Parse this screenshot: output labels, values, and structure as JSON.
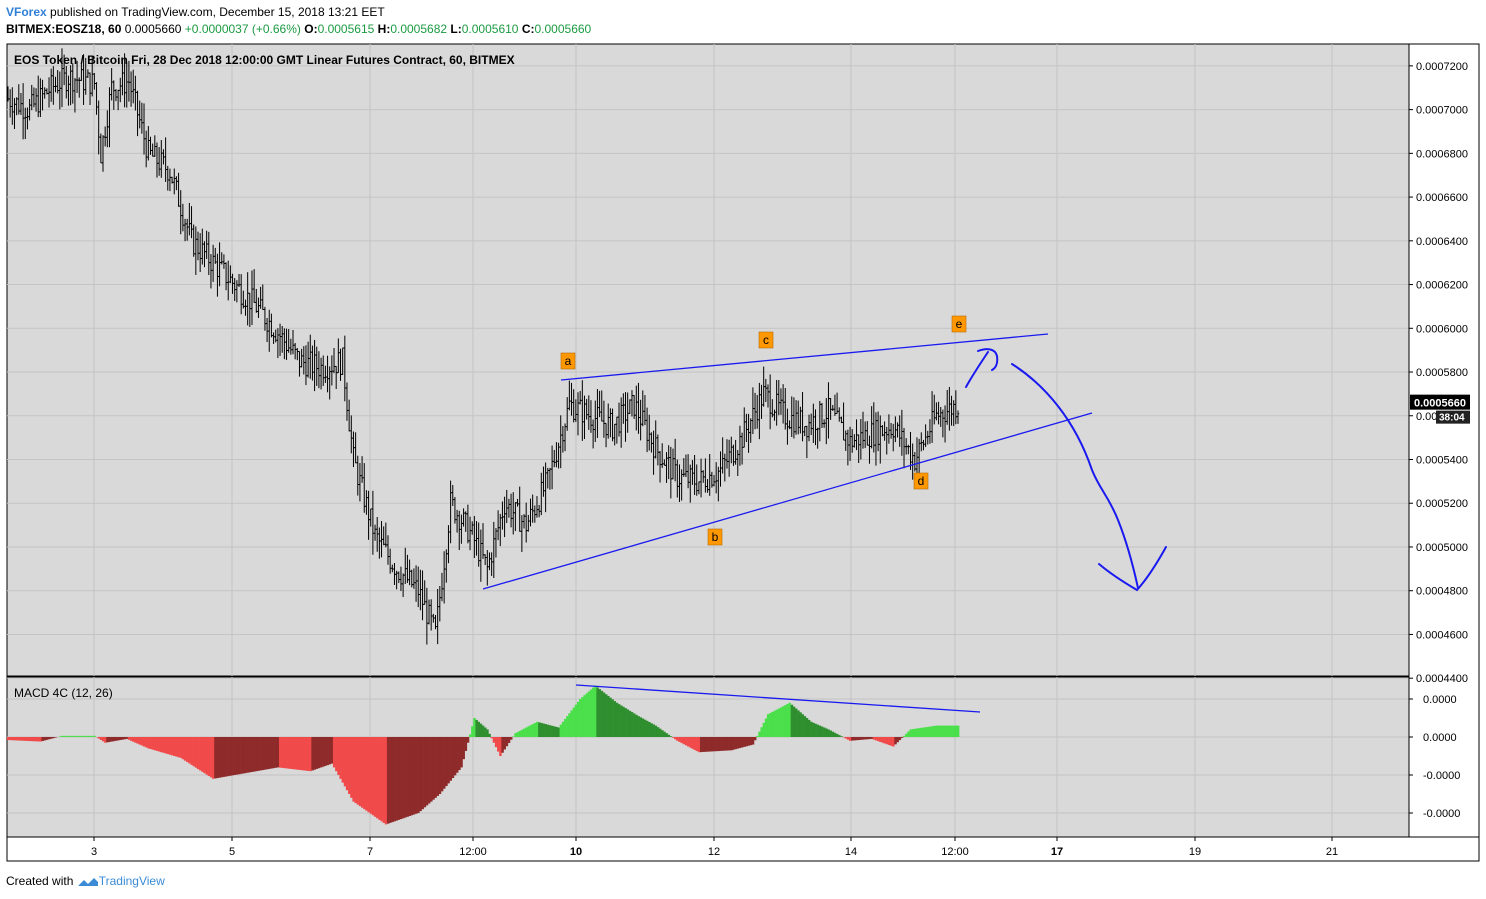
{
  "header": {
    "author": "VForex",
    "published_text": " published on TradingView.com, December 15, 2018 13:21 EET",
    "symbol": "BITMEX:EOSZ18, 60",
    "last": "0.0005660",
    "change": "+0.0000037 (+0.66%)",
    "open_label": "O:",
    "open": "0.0005615",
    "high_label": "H:",
    "high": "0.0005682",
    "low_label": "L:",
    "low": "0.0005610",
    "close_label": "C:",
    "close": "0.0005660"
  },
  "chart_title": "EOS Token / Bitcoin Fri, 28 Dec 2018 12:00:00 GMT Linear Futures Contract, 60, BITMEX",
  "indicator_title": "MACD 4C (12, 26)",
  "footer": {
    "created_text": "Created with",
    "brand": "TradingView"
  },
  "colors": {
    "background": "#d9d9d9",
    "candle": "#000000",
    "drawing": "#1a1af0",
    "label_box": "#ff9800",
    "macd_light_green": "#4be04b",
    "macd_dark_green": "#2f8f2f",
    "macd_light_red": "#f04a4a",
    "macd_dark_red": "#8e2a2a",
    "price_tag": "#000000"
  },
  "chart_data": [
    {
      "type": "candlestick",
      "title": "EOS Token / Bitcoin Fri, 28 Dec 2018 12:00:00 GMT Linear Futures Contract, 60, BITMEX",
      "x_tick_labels": [
        "3",
        "5",
        "7",
        "12:00",
        "10",
        "12",
        "14",
        "12:00",
        "17",
        "19",
        "21"
      ],
      "y_tick_labels": [
        "0.0007200",
        "0.0007000",
        "0.0006800",
        "0.0006600",
        "0.0006400",
        "0.0006200",
        "0.0006000",
        "0.0005800",
        "0.0005600",
        "0.0005400",
        "0.0005200",
        "0.0005000",
        "0.0004800",
        "0.0004600",
        "0.0004400"
      ],
      "ylim": [
        0.000441,
        0.00073
      ],
      "current_price": "0.0005660",
      "countdown": "38:04",
      "approx_path": [
        [
          0,
          0.000705
        ],
        [
          10,
          0.0007
        ],
        [
          20,
          0.00071
        ],
        [
          28,
          0.000715
        ],
        [
          40,
          0.000712
        ],
        [
          43,
          0.00068
        ],
        [
          48,
          0.00071
        ],
        [
          56,
          0.000713
        ],
        [
          65,
          0.00068
        ],
        [
          75,
          0.000672
        ],
        [
          85,
          0.00064
        ],
        [
          95,
          0.00063
        ],
        [
          105,
          0.00062
        ],
        [
          115,
          0.00061
        ],
        [
          125,
          0.000598
        ],
        [
          135,
          0.000585
        ],
        [
          145,
          0.000582
        ],
        [
          155,
          0.000585
        ],
        [
          160,
          0.00054
        ],
        [
          170,
          0.000505
        ],
        [
          180,
          0.00049
        ],
        [
          190,
          0.00048
        ],
        [
          198,
          0.00046
        ],
        [
          205,
          0.00052
        ],
        [
          215,
          0.000505
        ],
        [
          222,
          0.00049
        ],
        [
          230,
          0.00052
        ],
        [
          240,
          0.00051
        ],
        [
          250,
          0.00053
        ],
        [
          260,
          0.000565
        ],
        [
          270,
          0.00056
        ],
        [
          280,
          0.000555
        ],
        [
          290,
          0.000565
        ],
        [
          300,
          0.000545
        ],
        [
          310,
          0.000532
        ],
        [
          320,
          0.00053
        ],
        [
          330,
          0.000535
        ],
        [
          340,
          0.00055
        ],
        [
          350,
          0.00057
        ],
        [
          360,
          0.00056
        ],
        [
          370,
          0.000556
        ],
        [
          380,
          0.000562
        ],
        [
          390,
          0.000548
        ],
        [
          400,
          0.000552
        ],
        [
          410,
          0.000555
        ],
        [
          420,
          0.00054
        ],
        [
          430,
          0.00056
        ],
        [
          440,
          0.000565
        ]
      ]
    },
    {
      "type": "bar",
      "title": "MACD 4C (12, 26)",
      "y_tick_labels": [
        "0.0000",
        "0.0000",
        "-0.0000",
        "-0.0000"
      ],
      "approx_histogram": [
        [
          0,
          -0.08
        ],
        [
          15,
          -0.12
        ],
        [
          25,
          0.03
        ],
        [
          40,
          0.03
        ],
        [
          45,
          -0.15
        ],
        [
          55,
          -0.05
        ],
        [
          65,
          -0.3
        ],
        [
          80,
          -0.55
        ],
        [
          95,
          -1.1
        ],
        [
          110,
          -0.95
        ],
        [
          125,
          -0.8
        ],
        [
          140,
          -0.9
        ],
        [
          150,
          -0.7
        ],
        [
          160,
          -1.7
        ],
        [
          175,
          -2.3
        ],
        [
          190,
          -2.0
        ],
        [
          200,
          -1.5
        ],
        [
          210,
          -0.8
        ],
        [
          216,
          0.5
        ],
        [
          222,
          0.2
        ],
        [
          228,
          -0.5
        ],
        [
          235,
          0.1
        ],
        [
          245,
          0.4
        ],
        [
          255,
          0.25
        ],
        [
          265,
          1.0
        ],
        [
          272,
          1.35
        ],
        [
          282,
          0.9
        ],
        [
          292,
          0.55
        ],
        [
          300,
          0.3
        ],
        [
          310,
          -0.1
        ],
        [
          320,
          -0.4
        ],
        [
          335,
          -0.35
        ],
        [
          345,
          -0.2
        ],
        [
          352,
          0.6
        ],
        [
          362,
          0.9
        ],
        [
          372,
          0.4
        ],
        [
          380,
          0.2
        ],
        [
          390,
          -0.1
        ],
        [
          400,
          -0.05
        ],
        [
          410,
          -0.25
        ],
        [
          418,
          0.2
        ],
        [
          430,
          0.3
        ]
      ]
    }
  ],
  "annotations": {
    "wave_labels": [
      "a",
      "b",
      "c",
      "d",
      "e"
    ]
  }
}
